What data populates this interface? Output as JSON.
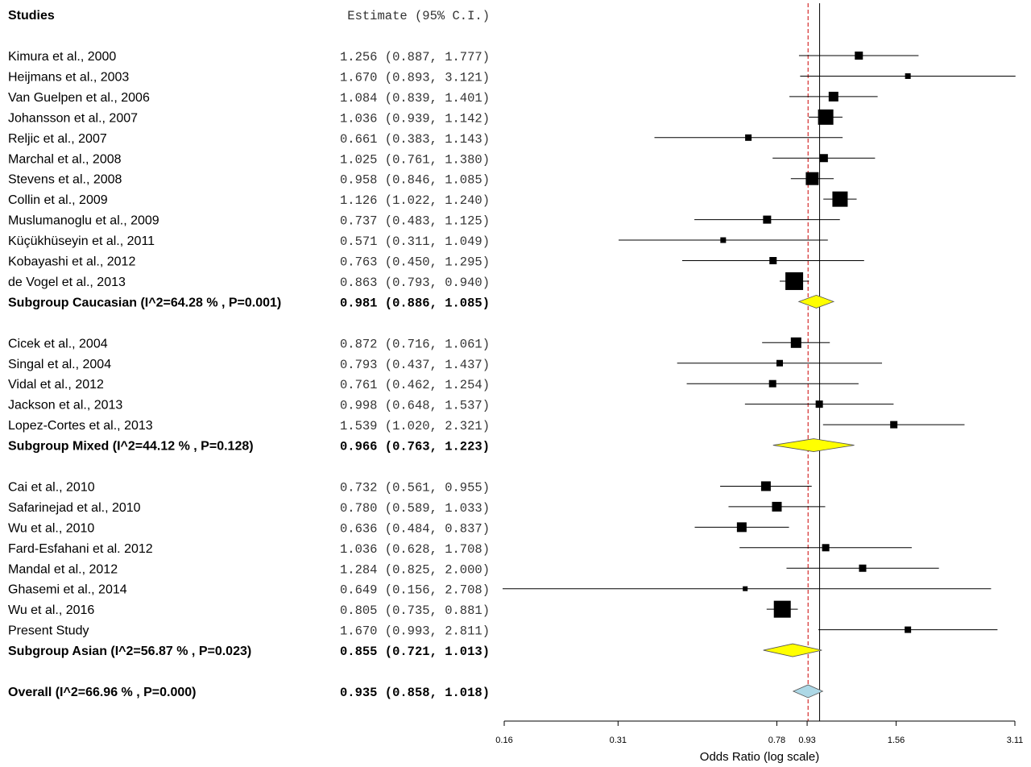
{
  "chart_data": {
    "type": "forest",
    "header": {
      "studies": "Studies",
      "estimate": "Estimate (95% C.I.)"
    },
    "xlabel": "Odds Ratio (log scale)",
    "xscale": "log",
    "xlim": [
      0.16,
      3.11
    ],
    "ticks": [
      {
        "value": 0.16,
        "label": "0.16"
      },
      {
        "value": 0.31,
        "label": "0.31"
      },
      {
        "value": 0.78,
        "label": "0.78"
      },
      {
        "value": 0.93,
        "label": "0.93"
      },
      {
        "value": 1.56,
        "label": "1.56"
      },
      {
        "value": 3.11,
        "label": "3.11"
      }
    ],
    "null_line": 1.0,
    "overall_line": 0.935,
    "colors": {
      "subgroup_diamond": "#ffff00",
      "overall_diamond": "#add8e6",
      "overall_line": "#cc0000"
    },
    "rows": [
      {
        "kind": "study",
        "label": "Kimura et al., 2000",
        "text": "1.256 (0.887, 1.777)",
        "est": 1.256,
        "lo": 0.887,
        "hi": 1.777,
        "size": 10
      },
      {
        "kind": "study",
        "label": "Heijmans et al., 2003",
        "text": "1.670 (0.893, 3.121)",
        "est": 1.67,
        "lo": 0.893,
        "hi": 3.121,
        "size": 7
      },
      {
        "kind": "study",
        "label": "Van Guelpen et al., 2006",
        "text": "1.084 (0.839, 1.401)",
        "est": 1.084,
        "lo": 0.839,
        "hi": 1.401,
        "size": 12
      },
      {
        "kind": "study",
        "label": "Johansson et al., 2007",
        "text": "1.036 (0.939, 1.142)",
        "est": 1.036,
        "lo": 0.939,
        "hi": 1.142,
        "size": 19
      },
      {
        "kind": "study",
        "label": "Reljic et al., 2007",
        "text": "0.661 (0.383, 1.143)",
        "est": 0.661,
        "lo": 0.383,
        "hi": 1.143,
        "size": 8
      },
      {
        "kind": "study",
        "label": "Marchal et al., 2008",
        "text": "1.025 (0.761, 1.380)",
        "est": 1.025,
        "lo": 0.761,
        "hi": 1.38,
        "size": 10
      },
      {
        "kind": "study",
        "label": "Stevens et al., 2008",
        "text": "0.958 (0.846, 1.085)",
        "est": 0.958,
        "lo": 0.846,
        "hi": 1.085,
        "size": 16
      },
      {
        "kind": "study",
        "label": "Collin et al., 2009",
        "text": "1.126 (1.022, 1.240)",
        "est": 1.126,
        "lo": 1.022,
        "hi": 1.24,
        "size": 19
      },
      {
        "kind": "study",
        "label": "Muslumanoglu et al., 2009",
        "text": "0.737 (0.483, 1.125)",
        "est": 0.737,
        "lo": 0.483,
        "hi": 1.125,
        "size": 10
      },
      {
        "kind": "study",
        "label": "Küçükhüseyin et al., 2011",
        "text": "0.571 (0.311, 1.049)",
        "est": 0.571,
        "lo": 0.311,
        "hi": 1.049,
        "size": 7
      },
      {
        "kind": "study",
        "label": "Kobayashi et al., 2012",
        "text": "0.763 (0.450, 1.295)",
        "est": 0.763,
        "lo": 0.45,
        "hi": 1.295,
        "size": 9
      },
      {
        "kind": "study",
        "label": "de Vogel et al., 2013",
        "text": "0.863 (0.793, 0.940)",
        "est": 0.863,
        "lo": 0.793,
        "hi": 0.94,
        "size": 22
      },
      {
        "kind": "subgroup",
        "label": "Subgroup Caucasian (I^2=64.28 % , P=0.001)",
        "text": "0.981 (0.886, 1.085)",
        "est": 0.981,
        "lo": 0.886,
        "hi": 1.085
      },
      {
        "kind": "gap"
      },
      {
        "kind": "study",
        "label": "Cicek et al., 2004",
        "text": "0.872 (0.716, 1.061)",
        "est": 0.872,
        "lo": 0.716,
        "hi": 1.061,
        "size": 13
      },
      {
        "kind": "study",
        "label": "Singal et al., 2004",
        "text": "0.793 (0.437, 1.437)",
        "est": 0.793,
        "lo": 0.437,
        "hi": 1.437,
        "size": 8
      },
      {
        "kind": "study",
        "label": "Vidal et al., 2012",
        "text": "0.761 (0.462, 1.254)",
        "est": 0.761,
        "lo": 0.462,
        "hi": 1.254,
        "size": 9
      },
      {
        "kind": "study",
        "label": "Jackson et al., 2013",
        "text": "0.998 (0.648, 1.537)",
        "est": 0.998,
        "lo": 0.648,
        "hi": 1.537,
        "size": 9
      },
      {
        "kind": "study",
        "label": "Lopez-Cortes et al., 2013",
        "text": "1.539 (1.020, 2.321)",
        "est": 1.539,
        "lo": 1.02,
        "hi": 2.321,
        "size": 9
      },
      {
        "kind": "subgroup",
        "label": "Subgroup Mixed (I^2=44.12 % , P=0.128)",
        "text": "0.966 (0.763, 1.223)",
        "est": 0.966,
        "lo": 0.763,
        "hi": 1.223
      },
      {
        "kind": "gap"
      },
      {
        "kind": "study",
        "label": "Cai et al., 2010",
        "text": "0.732 (0.561, 0.955)",
        "est": 0.732,
        "lo": 0.561,
        "hi": 0.955,
        "size": 12
      },
      {
        "kind": "study",
        "label": "Safarinejad et al., 2010",
        "text": "0.780 (0.589, 1.033)",
        "est": 0.78,
        "lo": 0.589,
        "hi": 1.033,
        "size": 12
      },
      {
        "kind": "study",
        "label": "Wu et al., 2010",
        "text": "0.636 (0.484, 0.837)",
        "est": 0.636,
        "lo": 0.484,
        "hi": 0.837,
        "size": 12
      },
      {
        "kind": "study",
        "label": "Fard-Esfahani et al. 2012",
        "text": "1.036 (0.628, 1.708)",
        "est": 1.036,
        "lo": 0.628,
        "hi": 1.708,
        "size": 9
      },
      {
        "kind": "study",
        "label": "Mandal et al., 2012",
        "text": "1.284 (0.825, 2.000)",
        "est": 1.284,
        "lo": 0.825,
        "hi": 2.0,
        "size": 9
      },
      {
        "kind": "study",
        "label": "Ghasemi et al., 2014",
        "text": "0.649 (0.156, 2.708)",
        "est": 0.649,
        "lo": 0.156,
        "hi": 2.708,
        "size": 6
      },
      {
        "kind": "study",
        "label": "Wu et al., 2016",
        "text": "0.805 (0.735, 0.881)",
        "est": 0.805,
        "lo": 0.735,
        "hi": 0.881,
        "size": 21
      },
      {
        "kind": "study",
        "label": "Present Study",
        "text": "1.670 (0.993, 2.811)",
        "est": 1.67,
        "lo": 0.993,
        "hi": 2.811,
        "size": 8
      },
      {
        "kind": "subgroup",
        "label": "Subgroup Asian (I^2=56.87 % , P=0.023)",
        "text": "0.855 (0.721, 1.013)",
        "est": 0.855,
        "lo": 0.721,
        "hi": 1.013
      },
      {
        "kind": "gap"
      },
      {
        "kind": "overall",
        "label": "Overall (I^2=66.96 % , P=0.000)",
        "text": "0.935 (0.858, 1.018)",
        "est": 0.935,
        "lo": 0.858,
        "hi": 1.018
      }
    ]
  }
}
